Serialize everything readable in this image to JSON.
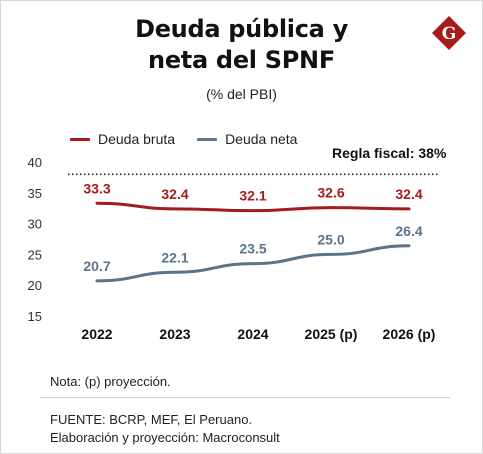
{
  "title_line1": "Deuda pública y",
  "title_line2": "neta del SPNF",
  "subtitle": "(% del PBI)",
  "logo": {
    "icon": "g-diamond-logo",
    "letter": "G",
    "color": "#a51c1c"
  },
  "legend": [
    {
      "label": "Deuda bruta",
      "color": "#a51c1c"
    },
    {
      "label": "Deuda neta",
      "color": "#5a748c"
    }
  ],
  "reference_label": "Regla fiscal: 38%",
  "note": "Nota: (p) proyección.",
  "source_line1": "FUENTE: BCRP, MEF, El Peruano.",
  "source_line2": "Elaboración y proyección: Macroconsult",
  "chart_data": {
    "type": "line",
    "x": [
      "2022",
      "2023",
      "2024",
      "2025 (p)",
      "2026 (p)"
    ],
    "series": [
      {
        "name": "Deuda bruta",
        "color": "#a51c1c",
        "values": [
          33.3,
          32.4,
          32.1,
          32.6,
          32.4
        ],
        "labels": [
          "33.3",
          "32.4",
          "32.1",
          "32.6",
          "32.4"
        ]
      },
      {
        "name": "Deuda neta",
        "color": "#5a748c",
        "values": [
          20.7,
          22.1,
          23.5,
          25.0,
          26.4
        ],
        "labels": [
          "20.7",
          "22.1",
          "23.5",
          "25.0",
          "26.4"
        ]
      }
    ],
    "yticks": [
      "40",
      "35",
      "30",
      "25",
      "20",
      "15"
    ],
    "ylim": [
      15,
      40
    ],
    "reference_line": {
      "value": 38,
      "label": "Regla fiscal: 38%",
      "style": "dotted"
    },
    "grid": false,
    "legend_position": "top-left"
  }
}
